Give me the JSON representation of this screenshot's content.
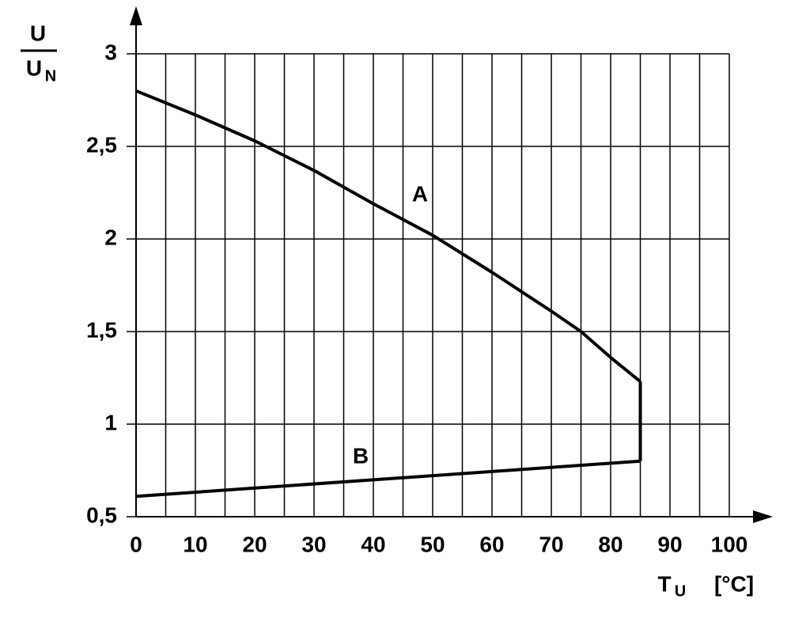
{
  "chart_data": {
    "type": "line",
    "ylabel_numerator": "U",
    "ylabel_denominator": "U",
    "ylabel_denominator_subscript": "N",
    "xlabel": "T",
    "xlabel_subscript": "U",
    "xunit": "[°C]",
    "xlim": [
      0,
      100
    ],
    "xticks": [
      0,
      10,
      20,
      30,
      40,
      50,
      60,
      70,
      80,
      90,
      100
    ],
    "xminor": [
      5,
      15,
      25,
      35,
      45,
      55,
      65,
      75,
      85,
      95
    ],
    "ylim": [
      0.5,
      3
    ],
    "yticks": [
      {
        "value": 0.5,
        "label": "0,5"
      },
      1,
      {
        "value": 1.5,
        "label": "1,5"
      },
      2,
      {
        "value": 2.5,
        "label": "2,5"
      },
      3
    ],
    "grid": true,
    "series": [
      {
        "name": "A",
        "color": "#000000",
        "x": [
          0,
          10,
          20,
          30,
          40,
          50,
          60,
          70,
          75,
          80,
          85
        ],
        "values": [
          2.8,
          2.67,
          2.53,
          2.37,
          2.19,
          2.02,
          1.82,
          1.61,
          1.5,
          1.36,
          1.23
        ]
      },
      {
        "name": "B",
        "color": "#000000",
        "x": [
          0,
          85
        ],
        "values": [
          0.61,
          0.8
        ]
      }
    ]
  }
}
